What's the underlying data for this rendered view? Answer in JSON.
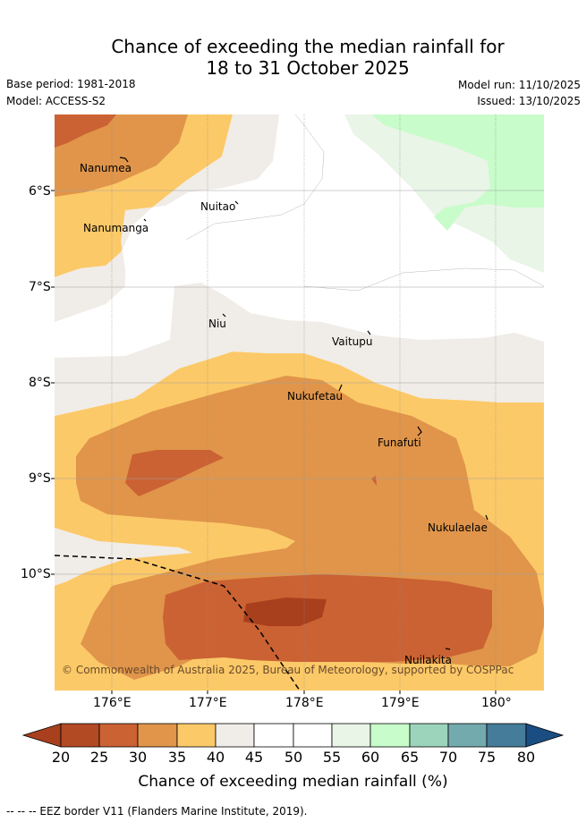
{
  "title": {
    "line1": "Chance of exceeding the median rainfall for",
    "line2": "18 to 31 October 2025"
  },
  "meta": {
    "base_period": "Base period: 1981-2018",
    "model": "Model: ACCESS-S2",
    "model_run": "Model run: 11/10/2025",
    "issued": "Issued: 13/10/2025"
  },
  "axes": {
    "lat_labels": [
      "6°S",
      "7°S",
      "8°S",
      "9°S",
      "10°S"
    ],
    "lon_labels": [
      "176°E",
      "177°E",
      "178°E",
      "179°E",
      "180°"
    ]
  },
  "places": [
    "Nanumea",
    "Nuitao",
    "Nanumanga",
    "Niu",
    "Vaitupu",
    "Nukufetau",
    "Funafuti",
    "Nukulaelae",
    "Nuilakita"
  ],
  "copyright": "© Commonwealth of Australia 2025, Bureau of Meteorology, supported by COSPPac",
  "colorbar": {
    "title": "Chance of exceeding median rainfall (%)",
    "ticks": [
      "20",
      "25",
      "30",
      "35",
      "40",
      "45",
      "50",
      "55",
      "60",
      "65",
      "70",
      "75",
      "80"
    ],
    "colors": [
      "#a8401e",
      "#b24a24",
      "#cb6233",
      "#e0954a",
      "#fcc968",
      "#f0ece7",
      "#ffffff",
      "#ffffff",
      "#e9f5e7",
      "#c8fcca",
      "#9cd4bb",
      "#73aaae",
      "#447c9a",
      "#1a4e82"
    ]
  },
  "footnote": "-- -- -- EEZ border V11 (Flanders Marine Institute, 2019)."
}
